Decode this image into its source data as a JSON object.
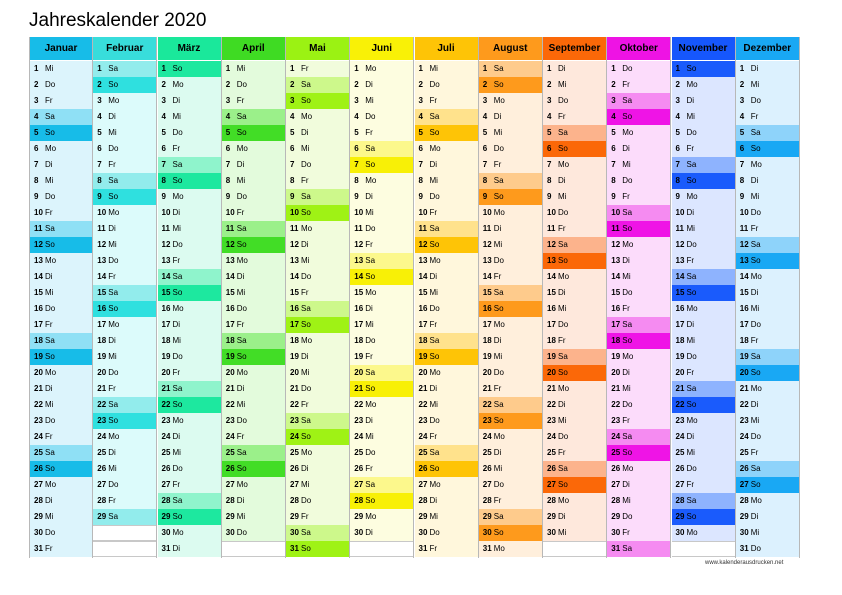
{
  "title": "Jahreskalender 2020",
  "footer": "www.kalenderausdrucken.net",
  "months": [
    {
      "name": "Januar",
      "head": "#17bce8",
      "light": "#dcf4fc",
      "sat": "#8fe0f5",
      "sun": "#17bce8",
      "first": 2,
      "days": 31
    },
    {
      "name": "Februar",
      "head": "#38dddb",
      "light": "#dcfbfb",
      "sat": "#92ecec",
      "sun": "#2fe0df",
      "first": 5,
      "days": 29
    },
    {
      "name": "März",
      "head": "#1ae89b",
      "light": "#dcfbf0",
      "sat": "#8ff4cc",
      "sun": "#1de89f",
      "first": 6,
      "days": 31
    },
    {
      "name": "April",
      "head": "#3fdb23",
      "light": "#e3fbdc",
      "sat": "#9bf08a",
      "sun": "#42dd26",
      "first": 2,
      "days": 30
    },
    {
      "name": "Mai",
      "head": "#9bf213",
      "light": "#f1fcdc",
      "sat": "#cdf88b",
      "sun": "#9ff215",
      "first": 4,
      "days": 31
    },
    {
      "name": "Juni",
      "head": "#f9f106",
      "light": "#fdfde0",
      "sat": "#fcf88c",
      "sun": "#f8f006",
      "first": 0,
      "days": 30
    },
    {
      "name": "Juli",
      "head": "#fec406",
      "light": "#fff7dc",
      "sat": "#ffe28c",
      "sun": "#fec406",
      "first": 2,
      "days": 31
    },
    {
      "name": "August",
      "head": "#fe9a1c",
      "light": "#ffefdc",
      "sat": "#fecb8c",
      "sun": "#fe9a1c",
      "first": 5,
      "days": 31
    },
    {
      "name": "September",
      "head": "#fb6808",
      "light": "#fee8dc",
      "sat": "#fcb38c",
      "sun": "#fb6808",
      "first": 1,
      "days": 30
    },
    {
      "name": "Oktober",
      "head": "#ee13e4",
      "light": "#fcdcfb",
      "sat": "#f58bf1",
      "sun": "#ef14e6",
      "first": 3,
      "days": 31
    },
    {
      "name": "November",
      "head": "#1657fc",
      "light": "#dce6ff",
      "sat": "#8eb3fe",
      "sun": "#1a5bfc",
      "first": 6,
      "days": 30
    },
    {
      "name": "Dezember",
      "head": "#19a8f4",
      "light": "#dcf1fe",
      "sat": "#8ed3fa",
      "sun": "#19a8f4",
      "first": 1,
      "days": 31
    }
  ],
  "weekdays": [
    "Mo",
    "Di",
    "Mi",
    "Do",
    "Fr",
    "Sa",
    "So"
  ]
}
